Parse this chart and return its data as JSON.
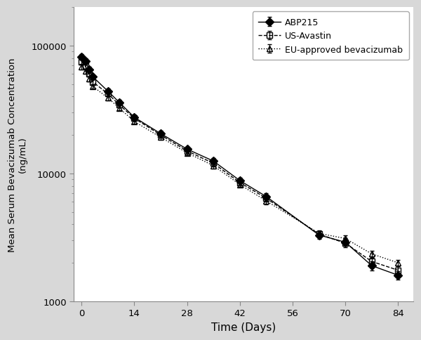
{
  "xlabel": "Time (Days)",
  "ylabel": "Mean Serum Bevacizumab Concentration\n(ng/mL)",
  "xlim": [
    -2,
    88
  ],
  "ylim": [
    1000,
    200000
  ],
  "xticks": [
    0,
    14,
    28,
    42,
    56,
    70,
    84
  ],
  "yticks_major": [
    1000,
    10000,
    100000
  ],
  "ytick_labels": [
    "1000",
    "10000",
    "100000"
  ],
  "series": {
    "ABP215": {
      "x": [
        0,
        1,
        2,
        3,
        7,
        10,
        14,
        21,
        28,
        35,
        42,
        49,
        63,
        70,
        77,
        84
      ],
      "y": [
        82000,
        76000,
        65000,
        57000,
        44000,
        36000,
        27500,
        20500,
        15500,
        12500,
        8800,
        6600,
        3300,
        2900,
        1900,
        1600
      ],
      "yerr_lo": [
        4000,
        3500,
        3000,
        2500,
        2000,
        1600,
        1300,
        1000,
        750,
        650,
        450,
        380,
        220,
        200,
        160,
        130
      ],
      "yerr_hi": [
        4000,
        3500,
        3000,
        2500,
        2000,
        1600,
        1300,
        1000,
        750,
        650,
        450,
        380,
        220,
        200,
        160,
        130
      ],
      "linestyle": "-",
      "marker": "D",
      "color": "#000000",
      "label": "ABP215",
      "markersize": 6,
      "fillstyle": "full"
    },
    "US-Avastin": {
      "x": [
        0,
        1,
        2,
        3,
        7,
        10,
        14,
        21,
        28,
        35,
        42,
        49,
        63,
        70,
        77,
        84
      ],
      "y": [
        75000,
        69000,
        60000,
        52000,
        42000,
        34500,
        27000,
        20000,
        15000,
        12000,
        8500,
        6400,
        3350,
        2850,
        2050,
        1750
      ],
      "yerr_lo": [
        3500,
        3200,
        2800,
        2300,
        1900,
        1500,
        1200,
        950,
        700,
        600,
        420,
        360,
        210,
        190,
        155,
        125
      ],
      "yerr_hi": [
        3500,
        3200,
        2800,
        2300,
        1900,
        1500,
        1200,
        950,
        700,
        600,
        420,
        360,
        210,
        190,
        155,
        125
      ],
      "linestyle": "--",
      "marker": "s",
      "color": "#000000",
      "label": "US-Avastin",
      "markersize": 6,
      "fillstyle": "none"
    },
    "EU-approved bevacizumab": {
      "x": [
        0,
        1,
        2,
        3,
        7,
        10,
        14,
        21,
        28,
        35,
        42,
        49,
        63,
        70,
        77,
        84
      ],
      "y": [
        68000,
        63000,
        55000,
        48000,
        39000,
        32500,
        25500,
        19200,
        14500,
        11500,
        8200,
        6100,
        3400,
        3100,
        2350,
        2000
      ],
      "yerr_lo": [
        3200,
        2900,
        2600,
        2100,
        1750,
        1400,
        1100,
        880,
        660,
        560,
        390,
        340,
        200,
        180,
        148,
        118
      ],
      "yerr_hi": [
        3200,
        2900,
        2600,
        2100,
        1750,
        1400,
        1100,
        880,
        660,
        560,
        390,
        340,
        200,
        180,
        148,
        118
      ],
      "linestyle": ":",
      "marker": "^",
      "color": "#000000",
      "label": "EU-approved bevacizumab",
      "markersize": 6,
      "fillstyle": "none"
    }
  },
  "background_color": "#ffffff",
  "outer_background": "#d8d8d8",
  "fig_width": 6.0,
  "fig_height": 4.85,
  "dpi": 100
}
